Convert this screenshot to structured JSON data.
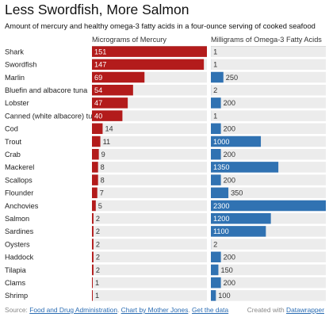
{
  "title": "Less Swordfish, More Salmon",
  "subtitle": "Amount of mercury and healthy omega-3 fatty acids in a four-ounce serving of cooked seafood",
  "colors": {
    "mercury": "#b31b1b",
    "omega": "#3072b2",
    "track": "#ececec",
    "label_light": "#ffffff",
    "label_dark": "#333333"
  },
  "chart_data": {
    "type": "bar",
    "orientation": "horizontal",
    "categories": [
      "Shark",
      "Swordfish",
      "Marlin",
      "Bluefin and albacore tuna",
      "Lobster",
      "Canned (white albacore) tuna",
      "Cod",
      "Trout",
      "Crab",
      "Mackerel",
      "Scallops",
      "Flounder",
      "Anchovies",
      "Salmon",
      "Sardines",
      "Oysters",
      "Haddock",
      "Tilapia",
      "Clams",
      "Shrimp"
    ],
    "series": [
      {
        "name": "Micrograms of Mercury",
        "values": [
          151,
          147,
          69,
          54,
          47,
          40,
          14,
          11,
          9,
          8,
          8,
          7,
          5,
          2,
          2,
          2,
          2,
          2,
          1,
          1
        ],
        "max": 151
      },
      {
        "name": "Milligrams of Omega-3 Fatty Acids",
        "values": [
          1,
          1,
          250,
          2,
          200,
          1,
          200,
          1000,
          200,
          1350,
          200,
          350,
          2300,
          1200,
          1100,
          2,
          200,
          150,
          200,
          100
        ],
        "max": 2300
      }
    ]
  },
  "footer": {
    "source_prefix": "Source: ",
    "source_link": "Food and Drug Administration",
    "sep1": ". ",
    "credit_link": "Chart by Mother Jones",
    "sep2": ". ",
    "data_link": "Get the data",
    "created_prefix": "Created with ",
    "created_link": "Datawrapper"
  }
}
